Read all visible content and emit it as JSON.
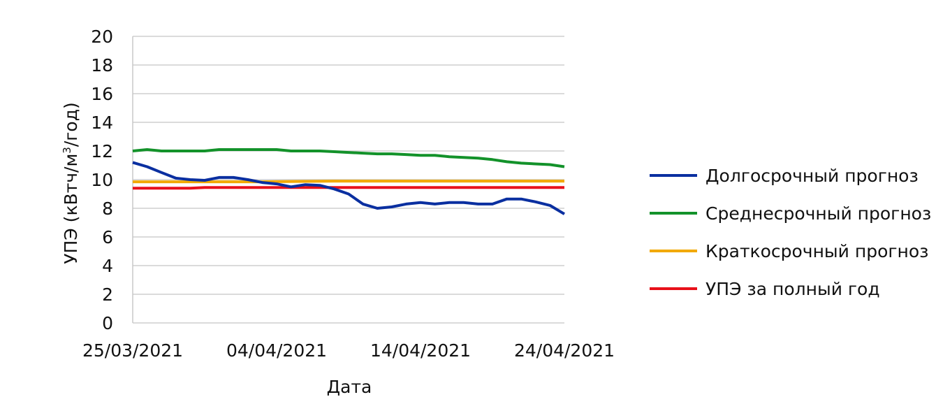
{
  "chart_data": {
    "type": "line",
    "title": "",
    "xlabel": "Дата",
    "ylabel_main": "УПЭ (кВтч/м",
    "ylabel_sup": "3",
    "ylabel_end": "/год)",
    "ylim": [
      0,
      20
    ],
    "y_ticks": [
      0,
      2,
      4,
      6,
      8,
      10,
      12,
      14,
      16,
      18,
      20
    ],
    "xlim": [
      "2021-03-25",
      "2021-04-24"
    ],
    "x_tick_dates": [
      "2021-03-25",
      "2021-04-04",
      "2021-04-14",
      "2021-04-24"
    ],
    "x_tick_labels": [
      "25/03/2021",
      "04/04/2021",
      "14/04/2021",
      "24/04/2021"
    ],
    "grid": "horizontal",
    "legend_position": "right",
    "series": [
      {
        "name": "Долгосрочный прогноз",
        "color": "#0a2fa0",
        "x": [
          "2021-03-25",
          "2021-03-26",
          "2021-03-27",
          "2021-03-28",
          "2021-03-29",
          "2021-03-30",
          "2021-03-31",
          "2021-04-01",
          "2021-04-02",
          "2021-04-03",
          "2021-04-04",
          "2021-04-05",
          "2021-04-06",
          "2021-04-07",
          "2021-04-08",
          "2021-04-09",
          "2021-04-10",
          "2021-04-11",
          "2021-04-12",
          "2021-04-13",
          "2021-04-14",
          "2021-04-15",
          "2021-04-16",
          "2021-04-17",
          "2021-04-18",
          "2021-04-19",
          "2021-04-20",
          "2021-04-21",
          "2021-04-22",
          "2021-04-23",
          "2021-04-24"
        ],
        "values": [
          11.2,
          10.9,
          10.5,
          10.1,
          10.0,
          9.95,
          10.15,
          10.15,
          10.0,
          9.8,
          9.7,
          9.5,
          9.65,
          9.6,
          9.35,
          9.0,
          8.3,
          8.0,
          8.1,
          8.3,
          8.4,
          8.3,
          8.4,
          8.4,
          8.3,
          8.3,
          8.65,
          8.65,
          8.45,
          8.2,
          7.6
        ]
      },
      {
        "name": "Среднесрочный прогноз",
        "color": "#13922a",
        "x": [
          "2021-03-25",
          "2021-03-26",
          "2021-03-27",
          "2021-03-28",
          "2021-03-29",
          "2021-03-30",
          "2021-03-31",
          "2021-04-01",
          "2021-04-02",
          "2021-04-03",
          "2021-04-04",
          "2021-04-05",
          "2021-04-06",
          "2021-04-07",
          "2021-04-08",
          "2021-04-09",
          "2021-04-10",
          "2021-04-11",
          "2021-04-12",
          "2021-04-13",
          "2021-04-14",
          "2021-04-15",
          "2021-04-16",
          "2021-04-17",
          "2021-04-18",
          "2021-04-19",
          "2021-04-20",
          "2021-04-21",
          "2021-04-22",
          "2021-04-23",
          "2021-04-24"
        ],
        "values": [
          12.0,
          12.1,
          12.0,
          12.0,
          12.0,
          12.0,
          12.1,
          12.1,
          12.1,
          12.1,
          12.1,
          12.0,
          12.0,
          12.0,
          11.95,
          11.9,
          11.85,
          11.8,
          11.8,
          11.75,
          11.7,
          11.7,
          11.6,
          11.55,
          11.5,
          11.4,
          11.25,
          11.15,
          11.1,
          11.05,
          10.9
        ]
      },
      {
        "name": "Краткосрочный прогноз",
        "color": "#f2a900",
        "x": [
          "2021-03-25",
          "2021-04-03",
          "2021-04-08",
          "2021-04-24"
        ],
        "values": [
          9.85,
          9.85,
          9.9,
          9.9
        ]
      },
      {
        "name": "УПЭ за полный год",
        "color": "#e8101a",
        "x": [
          "2021-03-25",
          "2021-03-29",
          "2021-03-30",
          "2021-04-24"
        ],
        "values": [
          9.4,
          9.4,
          9.45,
          9.45
        ]
      }
    ]
  }
}
